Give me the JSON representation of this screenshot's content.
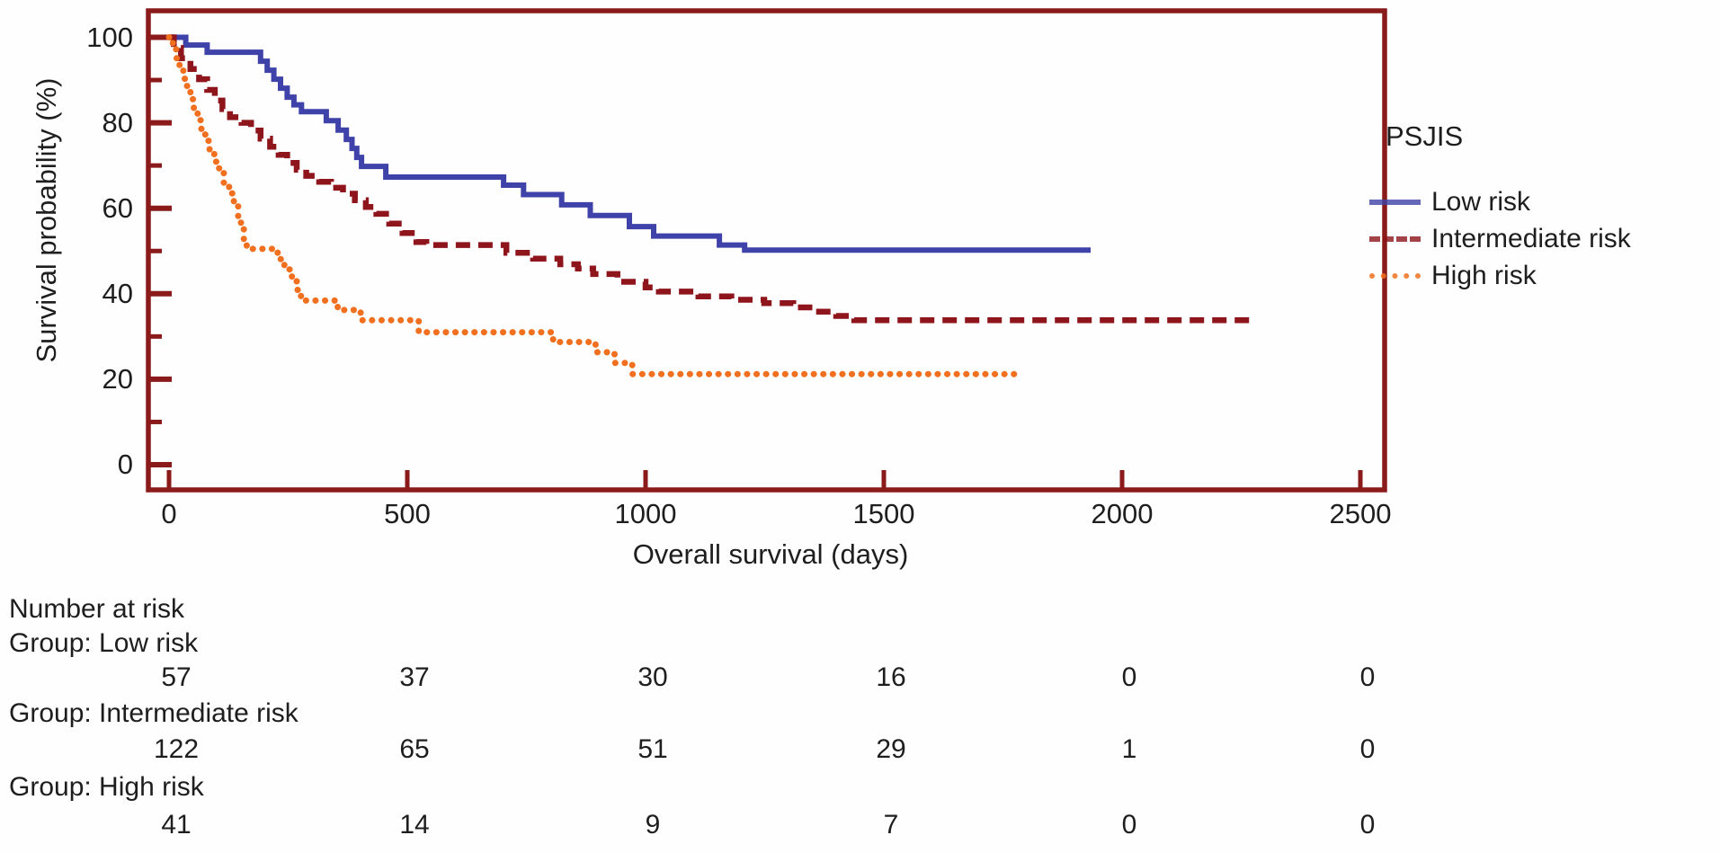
{
  "figure": {
    "background": "#fefefe",
    "text_color": "#1e1e1e"
  },
  "chart_data": {
    "type": "line",
    "subtype": "kaplan-meier-step-survival",
    "title": "",
    "xlabel": "Overall survival (days)",
    "ylabel": "Survival probability (%)",
    "xlim": [
      0,
      2500
    ],
    "ylim": [
      0,
      100
    ],
    "x_ticks": [
      0,
      500,
      1000,
      1500,
      2000,
      2500
    ],
    "y_ticks_major": [
      0,
      20,
      40,
      60,
      80,
      100
    ],
    "y_ticks_minor": [
      10,
      30,
      50,
      70,
      90
    ],
    "grid": false,
    "axis_color": "#8b1a1a",
    "legend": {
      "title": "PSJIS",
      "position": "right-outside"
    },
    "series": [
      {
        "name": "Low risk",
        "color": "#3f42a8",
        "line_style": "solid",
        "points": [
          [
            0,
            100
          ],
          [
            35,
            98.2
          ],
          [
            80,
            96.5
          ],
          [
            192,
            94.4
          ],
          [
            206,
            92.3
          ],
          [
            220,
            90.2
          ],
          [
            234,
            88.1
          ],
          [
            248,
            86.0
          ],
          [
            262,
            84.2
          ],
          [
            278,
            82.6
          ],
          [
            330,
            80.5
          ],
          [
            355,
            78.3
          ],
          [
            372,
            76.1
          ],
          [
            384,
            74.0
          ],
          [
            394,
            71.9
          ],
          [
            404,
            69.8
          ],
          [
            455,
            67.3
          ],
          [
            702,
            65.4
          ],
          [
            744,
            63.2
          ],
          [
            824,
            60.8
          ],
          [
            884,
            58.3
          ],
          [
            966,
            55.7
          ],
          [
            1017,
            53.5
          ],
          [
            1155,
            51.4
          ],
          [
            1208,
            50.2
          ],
          [
            1934,
            50.2
          ]
        ]
      },
      {
        "name": "Intermediate risk",
        "color": "#8d151b",
        "line_style": "dashed",
        "points": [
          [
            0,
            100
          ],
          [
            10,
            97.5
          ],
          [
            25,
            95.1
          ],
          [
            45,
            92.6
          ],
          [
            63,
            90.2
          ],
          [
            80,
            87.7
          ],
          [
            96,
            85.2
          ],
          [
            112,
            83.2
          ],
          [
            128,
            81.3
          ],
          [
            152,
            80.0
          ],
          [
            172,
            78.2
          ],
          [
            192,
            76.3
          ],
          [
            212,
            74.4
          ],
          [
            230,
            72.5
          ],
          [
            248,
            70.6
          ],
          [
            268,
            69.0
          ],
          [
            288,
            67.6
          ],
          [
            315,
            66.2
          ],
          [
            340,
            64.8
          ],
          [
            365,
            63.4
          ],
          [
            390,
            61.9
          ],
          [
            413,
            60.3
          ],
          [
            435,
            58.7
          ],
          [
            462,
            56.4
          ],
          [
            490,
            54.2
          ],
          [
            519,
            52.1
          ],
          [
            540,
            51.4
          ],
          [
            708,
            49.6
          ],
          [
            764,
            48.2
          ],
          [
            821,
            46.9
          ],
          [
            858,
            45.9
          ],
          [
            890,
            44.6
          ],
          [
            941,
            42.8
          ],
          [
            1000,
            41.5
          ],
          [
            1028,
            40.5
          ],
          [
            1111,
            39.4
          ],
          [
            1180,
            38.6
          ],
          [
            1249,
            37.8
          ],
          [
            1310,
            36.8
          ],
          [
            1356,
            35.8
          ],
          [
            1400,
            34.8
          ],
          [
            1438,
            33.8
          ],
          [
            2268,
            33.8
          ]
        ]
      },
      {
        "name": "High risk",
        "color": "#f1701f",
        "line_style": "dotted",
        "points": [
          [
            0,
            100
          ],
          [
            8,
            97.6
          ],
          [
            15,
            95.1
          ],
          [
            22,
            92.7
          ],
          [
            30,
            90.3
          ],
          [
            38,
            87.9
          ],
          [
            45,
            85.5
          ],
          [
            52,
            83.0
          ],
          [
            60,
            80.6
          ],
          [
            68,
            78.2
          ],
          [
            76,
            75.8
          ],
          [
            85,
            73.3
          ],
          [
            95,
            70.9
          ],
          [
            105,
            68.5
          ],
          [
            115,
            66.0
          ],
          [
            126,
            63.5
          ],
          [
            136,
            61.1
          ],
          [
            145,
            57.9
          ],
          [
            151,
            55.3
          ],
          [
            157,
            52.7
          ],
          [
            163,
            50.5
          ],
          [
            228,
            48.1
          ],
          [
            242,
            45.7
          ],
          [
            258,
            43.3
          ],
          [
            268,
            40.9
          ],
          [
            277,
            38.4
          ],
          [
            354,
            36.2
          ],
          [
            402,
            33.8
          ],
          [
            524,
            31.0
          ],
          [
            806,
            28.7
          ],
          [
            895,
            26.3
          ],
          [
            935,
            23.8
          ],
          [
            972,
            21.2
          ],
          [
            1787,
            21.2
          ]
        ]
      }
    ],
    "number_at_risk": {
      "header": "Number at risk",
      "time_points": [
        0,
        500,
        1000,
        1500,
        2000,
        2500
      ],
      "groups": [
        {
          "label": "Group: Low risk",
          "counts": [
            57,
            37,
            30,
            16,
            0,
            0
          ]
        },
        {
          "label": "Group: Intermediate risk",
          "counts": [
            122,
            65,
            51,
            29,
            1,
            0
          ]
        },
        {
          "label": "Group: High risk",
          "counts": [
            41,
            14,
            9,
            7,
            0,
            0
          ]
        }
      ]
    }
  }
}
